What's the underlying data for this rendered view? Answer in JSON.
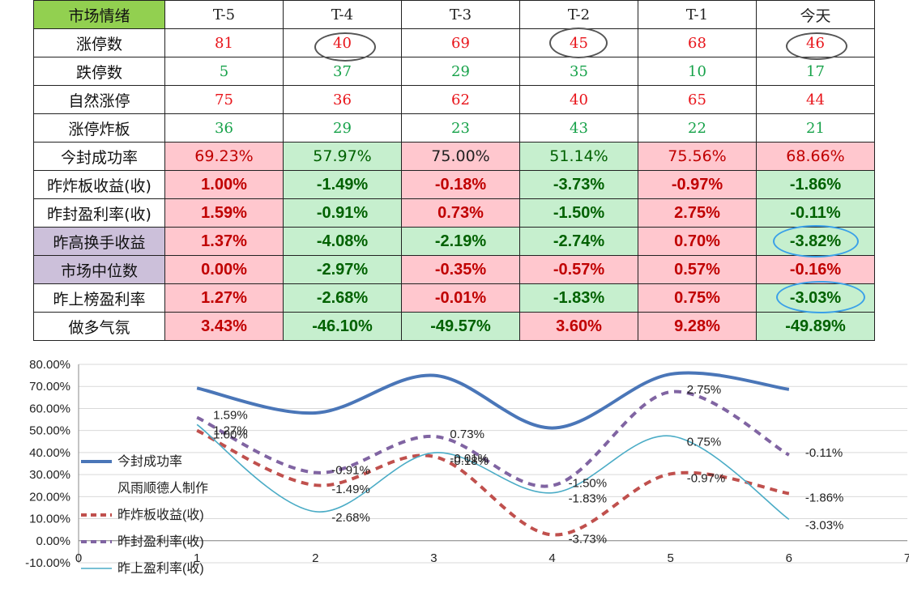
{
  "table": {
    "header_label": "市场情绪",
    "columns": [
      "T-5",
      "T-4",
      "T-3",
      "T-2",
      "T-1",
      "今天"
    ],
    "rows": [
      {
        "label": "涨停数",
        "values": [
          "81",
          "40",
          "69",
          "45",
          "68",
          "46"
        ],
        "style": "serif",
        "color": [
          "red",
          "red",
          "red",
          "red",
          "red",
          "red"
        ],
        "bg": [
          "white",
          "white",
          "white",
          "white",
          "white",
          "white"
        ],
        "label_bg": "white"
      },
      {
        "label": "跌停数",
        "values": [
          "5",
          "37",
          "29",
          "35",
          "10",
          "17"
        ],
        "style": "serif",
        "color": [
          "green",
          "green",
          "green",
          "green",
          "green",
          "green"
        ],
        "bg": [
          "white",
          "white",
          "white",
          "white",
          "white",
          "white"
        ],
        "label_bg": "white"
      },
      {
        "label": "自然涨停",
        "values": [
          "75",
          "36",
          "62",
          "40",
          "65",
          "44"
        ],
        "style": "serif",
        "color": [
          "red",
          "red",
          "red",
          "red",
          "red",
          "red"
        ],
        "bg": [
          "white",
          "white",
          "white",
          "white",
          "white",
          "white"
        ],
        "label_bg": "white"
      },
      {
        "label": "涨停炸板",
        "values": [
          "36",
          "29",
          "23",
          "43",
          "22",
          "21"
        ],
        "style": "serif",
        "color": [
          "green",
          "green",
          "green",
          "green",
          "green",
          "green"
        ],
        "bg": [
          "white",
          "white",
          "white",
          "white",
          "white",
          "white"
        ],
        "label_bg": "white"
      },
      {
        "label": "今封成功率",
        "values": [
          "69.23%",
          "57.97%",
          "75.00%",
          "51.14%",
          "75.56%",
          "68.66%"
        ],
        "style": "normal",
        "color": [
          "dred",
          "dgreen",
          "plain",
          "dgreen",
          "dred",
          "dred"
        ],
        "bg": [
          "pink",
          "green",
          "pink",
          "green",
          "pink",
          "pink"
        ],
        "label_bg": "white"
      },
      {
        "label": "昨炸板收益(收)",
        "values": [
          "1.00%",
          "-1.49%",
          "-0.18%",
          "-3.73%",
          "-0.97%",
          "-1.86%"
        ],
        "style": "bold",
        "color": [
          "dred",
          "dgreen",
          "dred",
          "dgreen",
          "dred",
          "dgreen"
        ],
        "bg": [
          "pink",
          "green",
          "pink",
          "green",
          "pink",
          "green"
        ],
        "label_bg": "white"
      },
      {
        "label": "昨封盈利率(收)",
        "values": [
          "1.59%",
          "-0.91%",
          "0.73%",
          "-1.50%",
          "2.75%",
          "-0.11%"
        ],
        "style": "bold",
        "color": [
          "dred",
          "dgreen",
          "dred",
          "dgreen",
          "dred",
          "dgreen"
        ],
        "bg": [
          "pink",
          "green",
          "pink",
          "green",
          "pink",
          "green"
        ],
        "label_bg": "white"
      },
      {
        "label": "昨高换手收益",
        "values": [
          "1.37%",
          "-4.08%",
          "-2.19%",
          "-2.74%",
          "0.70%",
          "-3.82%"
        ],
        "style": "bold",
        "color": [
          "dred",
          "dgreen",
          "dgreen",
          "dgreen",
          "dred",
          "dgreen"
        ],
        "bg": [
          "pink",
          "green",
          "green",
          "green",
          "pink",
          "green"
        ],
        "label_bg": "purple"
      },
      {
        "label": "市场中位数",
        "values": [
          "0.00%",
          "-2.97%",
          "-0.35%",
          "-0.57%",
          "0.57%",
          "-0.16%"
        ],
        "style": "bold",
        "color": [
          "dred",
          "dgreen",
          "dred",
          "dred",
          "dred",
          "dred"
        ],
        "bg": [
          "pink",
          "green",
          "pink",
          "pink",
          "pink",
          "pink"
        ],
        "label_bg": "purple"
      },
      {
        "label": "昨上榜盈利率",
        "values": [
          "1.27%",
          "-2.68%",
          "-0.01%",
          "-1.83%",
          "0.75%",
          "-3.03%"
        ],
        "style": "bold",
        "color": [
          "dred",
          "dgreen",
          "dred",
          "dgreen",
          "dred",
          "dgreen"
        ],
        "bg": [
          "pink",
          "green",
          "pink",
          "green",
          "pink",
          "green"
        ],
        "label_bg": "white"
      },
      {
        "label": "做多气氛",
        "values": [
          "3.43%",
          "-46.10%",
          "-49.57%",
          "3.60%",
          "9.28%",
          "-49.89%"
        ],
        "style": "bold",
        "color": [
          "dred",
          "dgreen",
          "dgreen",
          "dred",
          "dred",
          "dgreen"
        ],
        "bg": [
          "pink",
          "green",
          "green",
          "pink",
          "pink",
          "green"
        ],
        "label_bg": "white"
      }
    ]
  },
  "watermark": "风雨顺德人",
  "colors": {
    "header_label_bg": "#92d050",
    "purple_label_bg": "#ccc0da",
    "pink_bg": "#ffc7ce",
    "green_bg": "#c6efce",
    "red_text": "#e8141a",
    "green_text": "#17a24a",
    "dark_red_text": "#c00000",
    "dark_green_text": "#006100",
    "gray_marker": "#555555",
    "blue_marker": "#3aa0e8"
  },
  "chart_data": {
    "type": "line",
    "x": [
      1,
      2,
      3,
      4,
      5,
      6
    ],
    "xlim": [
      0,
      7
    ],
    "x_ticks": [
      "0",
      "1",
      "2",
      "3",
      "4",
      "5",
      "6",
      "7"
    ],
    "ylim": [
      -10,
      80
    ],
    "y_ticks": [
      "80.00%",
      "70.00%",
      "60.00%",
      "50.00%",
      "40.00%",
      "30.00%",
      "20.00%",
      "10.00%",
      "0.00%",
      "-10.00%"
    ],
    "grid": true,
    "legend_position": "left",
    "watermark": "风雨顺德人制作",
    "series": [
      {
        "name": "今封成功率",
        "values": [
          69.23,
          57.97,
          75.0,
          51.14,
          75.56,
          68.66
        ],
        "color": "#4a76b8",
        "style": "solid-thick",
        "labels": []
      },
      {
        "name": "昨炸板收益(收)",
        "values": [
          50.0,
          25.2,
          38.2,
          2.7,
          30.3,
          21.4
        ],
        "color": "#c0504d",
        "style": "dashed",
        "labels": [
          "1.00%",
          "-1.49%",
          "-0.18%",
          "-3.73%",
          "-0.97%",
          "-1.86%"
        ]
      },
      {
        "name": "昨封盈利率(收)",
        "values": [
          55.9,
          30.9,
          47.3,
          25.0,
          67.5,
          38.9
        ],
        "color": "#8064a2",
        "style": "dashed",
        "labels": [
          "1.59%",
          "-0.91%",
          "0.73%",
          "-1.50%",
          "2.75%",
          "-0.11%"
        ]
      },
      {
        "name": "昨上盈利率(收)",
        "values": [
          52.7,
          13.2,
          39.9,
          21.7,
          47.5,
          9.7
        ],
        "color": "#4bacc6",
        "style": "solid-thin",
        "labels": [
          "1.27%",
          "-2.68%",
          "-0.01%",
          "-1.83%",
          "0.75%",
          "-3.03%"
        ]
      }
    ]
  }
}
